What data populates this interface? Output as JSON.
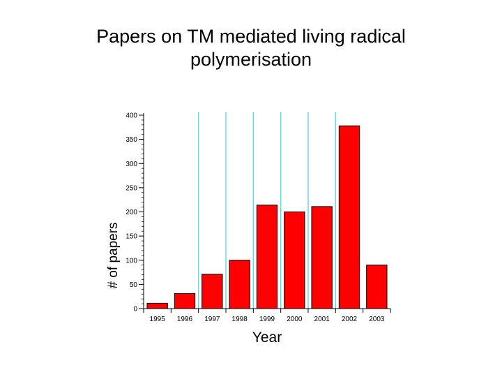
{
  "slide": {
    "title_line1": "Papers on TM mediated living radical",
    "title_line2": "polymerisation"
  },
  "chart_data": {
    "type": "bar",
    "title": "Papers on TM mediated living radical polymerisation",
    "xlabel": "Year",
    "ylabel": "# of papers",
    "categories": [
      "1995",
      "1996",
      "1997",
      "1998",
      "1999",
      "2000",
      "2001",
      "2002",
      "2003"
    ],
    "values": [
      11,
      31,
      71,
      100,
      214,
      200,
      211,
      378,
      90
    ],
    "ylim": [
      0,
      400
    ],
    "yticks": [
      0,
      50,
      100,
      150,
      200,
      250,
      300,
      350,
      400
    ],
    "bar_color": "#ff0000",
    "gridline_color": "#66d9e8",
    "grid": "vertical lines between bars",
    "legend": "none"
  }
}
